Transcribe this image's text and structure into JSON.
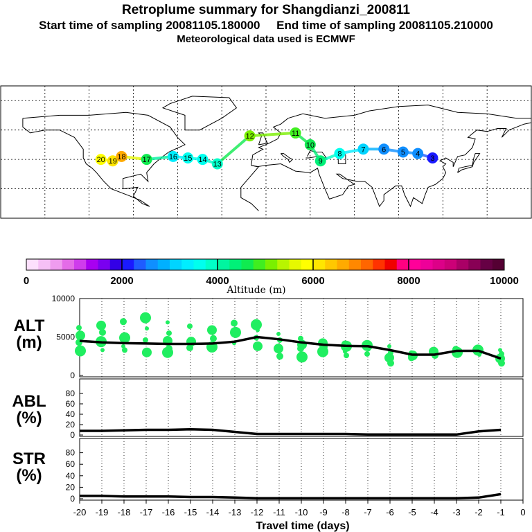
{
  "header": {
    "title": "Retroplume summary for Shangdianzi_200811",
    "sampling": "Start time of sampling 20081105.180000     End time of sampling 20081105.210000",
    "met": "Meteorological data used is ECMWF"
  },
  "colors": {
    "scale": [
      "#fde0fd",
      "#f6c0f6",
      "#ef9cef",
      "#e46ce8",
      "#cf3cec",
      "#a800f0",
      "#7a00f0",
      "#3300e6",
      "#1a1aff",
      "#1f5cff",
      "#0f8fff",
      "#00b0ff",
      "#00d4ff",
      "#00eeff",
      "#00ffee",
      "#00ffc8",
      "#00f5a0",
      "#00f078",
      "#10eb50",
      "#40ee20",
      "#7af000",
      "#b8f500",
      "#e6f800",
      "#ffff00",
      "#ffe600",
      "#ffc800",
      "#ffaa00",
      "#ff8800",
      "#ff6600",
      "#ff3300",
      "#f00000",
      "#ff0080",
      "#ff0099",
      "#ee0099",
      "#dd0088",
      "#cc0077",
      "#aa0066",
      "#880055",
      "#660044",
      "#550033"
    ],
    "point": "#20ee60",
    "line": "#000000"
  },
  "chart_data": [
    {
      "type": "map",
      "title": "Retroplume positions",
      "plume": [
        {
          "label": "20",
          "lon": -112,
          "lat": 40,
          "alt": 5800
        },
        {
          "label": "19",
          "lon": -104,
          "lat": 39,
          "alt": 6000
        },
        {
          "label": "18",
          "lon": -98,
          "lat": 42,
          "alt": 6500
        },
        {
          "label": "17",
          "lon": -81,
          "lat": 40,
          "alt": 4700
        },
        {
          "label": "16",
          "lon": -63,
          "lat": 42,
          "alt": 3400
        },
        {
          "label": "15",
          "lon": -53,
          "lat": 41,
          "alt": 3500
        },
        {
          "label": "14",
          "lon": -43,
          "lat": 40,
          "alt": 3600
        },
        {
          "label": "13",
          "lon": -33,
          "lat": 37,
          "alt": 3900
        },
        {
          "label": "12",
          "lon": -11,
          "lat": 56,
          "alt": 5200
        },
        {
          "label": "11",
          "lon": 20,
          "lat": 58,
          "alt": 4800
        },
        {
          "label": "10",
          "lon": 30,
          "lat": 50,
          "alt": 4600
        },
        {
          "label": "9",
          "lon": 37,
          "lat": 39,
          "alt": 4300
        },
        {
          "label": "8",
          "lon": 50,
          "lat": 44,
          "alt": 3500
        },
        {
          "label": "7",
          "lon": 66,
          "lat": 47,
          "alt": 3000
        },
        {
          "label": "6",
          "lon": 80,
          "lat": 47,
          "alt": 2600
        },
        {
          "label": "5",
          "lon": 93,
          "lat": 45,
          "alt": 2600
        },
        {
          "label": "4",
          "lon": 103,
          "lat": 44,
          "alt": 2500
        },
        {
          "label": "3",
          "lon": 113,
          "lat": 41,
          "alt": 2000
        }
      ],
      "scale_labels": [
        "0",
        "2000",
        "4000",
        "6000",
        "8000",
        "10000"
      ],
      "scale_title": "Altitude (m)",
      "scale_range": [
        0,
        10000
      ]
    },
    {
      "type": "line",
      "ylabel": "ALT\n(m)",
      "ylim": [
        0,
        10000
      ],
      "yticks": [
        "10000",
        "5000",
        "0"
      ],
      "x": [
        -20,
        -19,
        -18,
        -17,
        -16,
        -15,
        -14,
        -13,
        -12,
        -11,
        -10,
        -9,
        -8,
        -7,
        -6,
        -5,
        -4,
        -3,
        -2,
        -1
      ],
      "values": [
        4500,
        4300,
        4200,
        4150,
        4100,
        4100,
        4150,
        4400,
        5000,
        4700,
        4300,
        4000,
        3850,
        3800,
        3300,
        2700,
        2700,
        3200,
        3200,
        2200
      ],
      "scatter": [
        {
          "x": -20,
          "y": [
            6200,
            5200,
            4300,
            3200
          ]
        },
        {
          "x": -19,
          "y": [
            6500,
            5600,
            4400,
            3300
          ]
        },
        {
          "x": -18,
          "y": [
            7000,
            4900,
            3800,
            3300
          ]
        },
        {
          "x": -17,
          "y": [
            7500,
            6100,
            4600,
            3000,
            2900
          ]
        },
        {
          "x": -16,
          "y": [
            6900,
            5500,
            4500,
            3500,
            3000
          ]
        },
        {
          "x": -15,
          "y": [
            6400,
            4400,
            3600
          ]
        },
        {
          "x": -14,
          "y": [
            5900,
            4800,
            3700
          ]
        },
        {
          "x": -13,
          "y": [
            6800,
            5600,
            4200
          ]
        },
        {
          "x": -12,
          "y": [
            6600,
            5900,
            4900,
            3800
          ]
        },
        {
          "x": -11,
          "y": [
            5400,
            4600,
            3500,
            2500
          ]
        },
        {
          "x": -10,
          "y": [
            4800,
            4000,
            3500,
            2400
          ]
        },
        {
          "x": -9,
          "y": [
            4200,
            3700,
            3100,
            2800
          ]
        },
        {
          "x": -8,
          "y": [
            4100,
            3800,
            3100,
            2600
          ]
        },
        {
          "x": -7,
          "y": [
            3900,
            3400,
            2800
          ]
        },
        {
          "x": -6,
          "y": [
            3800,
            3000,
            2300,
            1600
          ]
        },
        {
          "x": -5,
          "y": [
            2900,
            2600,
            2300
          ]
        },
        {
          "x": -4,
          "y": [
            3100,
            2600
          ]
        },
        {
          "x": -3,
          "y": [
            3400,
            3000,
            2600
          ]
        },
        {
          "x": -2,
          "y": [
            3300,
            2700
          ]
        },
        {
          "x": -1,
          "y": [
            3300,
            2800,
            2200,
            1600
          ]
        }
      ]
    },
    {
      "type": "line",
      "ylabel": "ABL\n(%)",
      "ylim": [
        0,
        100
      ],
      "yticks": [
        "80",
        "60",
        "40",
        "20",
        "0"
      ],
      "x": [
        -20,
        -19,
        -18,
        -17,
        -16,
        -15,
        -14,
        -13,
        -12,
        -11,
        -10,
        -9,
        -8,
        -7,
        -6,
        -5,
        -4,
        -3,
        -2,
        -1
      ],
      "values": [
        8,
        8,
        9,
        10,
        10,
        11,
        10,
        6,
        2,
        2,
        2,
        2,
        2,
        1,
        1,
        1,
        1,
        1,
        7,
        10
      ]
    },
    {
      "type": "line",
      "ylabel": "STR\n(%)",
      "ylim": [
        0,
        100
      ],
      "yticks": [
        "80",
        "60",
        "40",
        "20",
        "0"
      ],
      "x": [
        -20,
        -19,
        -18,
        -17,
        -16,
        -15,
        -14,
        -13,
        -12,
        -11,
        -10,
        -9,
        -8,
        -7,
        -6,
        -5,
        -4,
        -3,
        -2,
        -1
      ],
      "values": [
        5,
        5,
        4,
        4,
        4,
        3,
        3,
        2,
        1,
        1,
        1,
        1,
        1,
        1,
        1,
        1,
        1,
        1,
        2,
        8
      ],
      "xlabel": "Travel time (days)",
      "xticks": [
        "-20",
        "-19",
        "-18",
        "-17",
        "-16",
        "-15",
        "-14",
        "-13",
        "-12",
        "-11",
        "-10",
        "-9",
        "-8",
        "-7",
        "-6",
        "-5",
        "-4",
        "-3",
        "-2",
        "-1",
        "0"
      ]
    }
  ]
}
